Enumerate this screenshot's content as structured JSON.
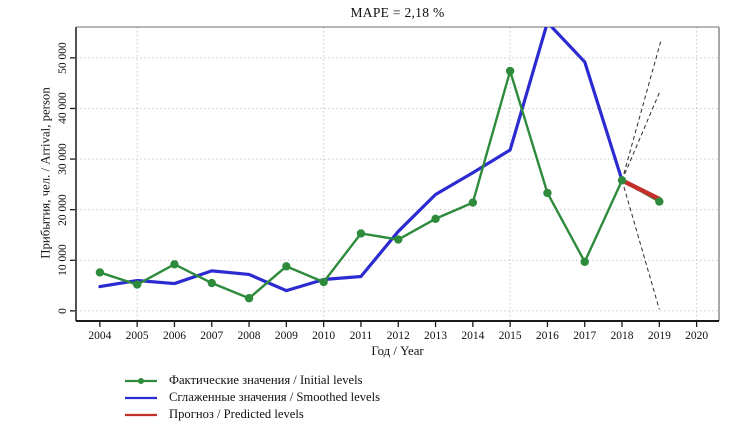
{
  "chart_data": {
    "type": "line",
    "title": "MAPE = 2,18 %",
    "xlabel": "Год / Year",
    "ylabel": "Прибытия, чел. / Arrival, person",
    "xlim": [
      2003.36,
      2020.6
    ],
    "ylim": [
      -2000,
      56100
    ],
    "grid": "dotted",
    "legend_position": "bottom-left",
    "x_ticks": [
      2004,
      2005,
      2006,
      2007,
      2008,
      2009,
      2010,
      2011,
      2012,
      2013,
      2014,
      2015,
      2016,
      2017,
      2018,
      2019,
      2020
    ],
    "x_gridlines": [
      2005,
      2010,
      2015,
      2020
    ],
    "y_ticks": [
      {
        "value": 0,
        "label": "0"
      },
      {
        "value": 10000,
        "label": "10 000"
      },
      {
        "value": 20000,
        "label": "20 000"
      },
      {
        "value": 30000,
        "label": "30 000"
      },
      {
        "value": 40000,
        "label": "40 000"
      },
      {
        "value": 50000,
        "label": "50 000"
      }
    ],
    "series": [
      {
        "name": "Фактические значения / Initial levels",
        "color": "#2e8b3c",
        "marker": "circle",
        "line_width": 2.4,
        "x": [
          2004,
          2005,
          2006,
          2007,
          2008,
          2009,
          2010,
          2011,
          2012,
          2013,
          2014,
          2015,
          2016,
          2017,
          2018,
          2019
        ],
        "values": [
          7600,
          5200,
          9200,
          5500,
          2500,
          8800,
          5700,
          15300,
          14100,
          18200,
          21400,
          47400,
          23300,
          9700,
          25800,
          21600
        ]
      },
      {
        "name": "Сглаженные значения / Smoothed levels",
        "color": "#2b2bd1",
        "marker": "none",
        "line_width": 3.2,
        "x": [
          2004,
          2005,
          2006,
          2007,
          2008,
          2009,
          2010,
          2011,
          2012,
          2013,
          2014,
          2015,
          2016,
          2017,
          2018
        ],
        "values": [
          4800,
          6000,
          5400,
          7900,
          7200,
          4000,
          6200,
          6800,
          15700,
          23000,
          27300,
          31800,
          57000,
          49200,
          25800
        ]
      },
      {
        "name": "Прогноз / Predicted levels",
        "color": "#c3302b",
        "marker": "none",
        "line_width": 4.5,
        "x": [
          2018,
          2019
        ],
        "values": [
          25800,
          22100
        ]
      }
    ],
    "prediction_intervals": {
      "origin": {
        "x": 2018,
        "value": 25800
      },
      "rays": [
        {
          "x": 2019.05,
          "value": 53600
        },
        {
          "x": 2019.0,
          "value": 43100
        },
        {
          "x": 2019.0,
          "value": 300
        }
      ],
      "style": "dashed-black"
    },
    "colors": {
      "gridline": "#c9c9c9",
      "frame_light": "#8c8c8c",
      "frame_dark": "#1a1a1a",
      "interval_dash": "#2b2b2b",
      "text": "#111111"
    }
  }
}
